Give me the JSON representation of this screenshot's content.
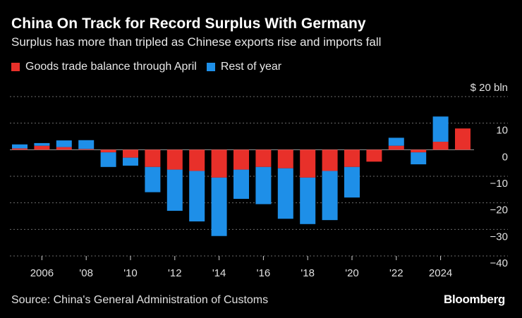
{
  "chart_data": {
    "type": "bar",
    "stacked": true,
    "title": "China On Track for Record Surplus With Germany",
    "subtitle": "Surplus has more than tripled as Chinese exports rise and imports fall",
    "ylabel": "$ 20 bln",
    "ylim": [
      -40,
      20
    ],
    "yticks": [
      10,
      0,
      -10,
      -20,
      -30,
      -40
    ],
    "ytick_labels": [
      "10",
      "0",
      "−10",
      "−20",
      "−30",
      "−40"
    ],
    "categories": [
      "2005",
      "2006",
      "2007",
      "2008",
      "2009",
      "2010",
      "2011",
      "2012",
      "2013",
      "2014",
      "2015",
      "2016",
      "2017",
      "2018",
      "2019",
      "2020",
      "2021",
      "2022",
      "2023",
      "2024",
      "2025"
    ],
    "xtick_labels": [
      {
        "year": "2006",
        "label": "2006"
      },
      {
        "year": "2008",
        "label": "'08"
      },
      {
        "year": "2010",
        "label": "'10"
      },
      {
        "year": "2012",
        "label": "'12"
      },
      {
        "year": "2014",
        "label": "'14"
      },
      {
        "year": "2016",
        "label": "'16"
      },
      {
        "year": "2018",
        "label": "'18"
      },
      {
        "year": "2020",
        "label": "'20"
      },
      {
        "year": "2022",
        "label": "'22"
      },
      {
        "year": "2024",
        "label": "2024"
      }
    ],
    "series": [
      {
        "name": "Goods trade balance through April",
        "color": "#e8302a",
        "values": [
          0.5,
          1.5,
          1.0,
          0.3,
          -1.0,
          -3.0,
          -6.5,
          -7.5,
          -8.0,
          -10.5,
          -7.5,
          -6.5,
          -7.0,
          -10.5,
          -8.0,
          -6.5,
          -4.5,
          1.5,
          -1.0,
          3.0,
          8.0
        ]
      },
      {
        "name": "Rest of year",
        "color": "#1e8fe8",
        "values": [
          1.5,
          1.0,
          2.5,
          3.3,
          -5.5,
          -3.0,
          -9.5,
          -15.5,
          -19.0,
          -22.0,
          -11.0,
          -14.0,
          -19.0,
          -17.5,
          -18.5,
          -11.5,
          0,
          3.0,
          -4.5,
          9.5,
          0
        ]
      }
    ]
  },
  "legend": {
    "items": [
      {
        "label": "Goods trade balance through April",
        "color": "#e8302a"
      },
      {
        "label": "Rest of year",
        "color": "#1e8fe8"
      }
    ]
  },
  "footer": {
    "source": "Source: China's General Administration of Customs",
    "brand": "Bloomberg"
  }
}
